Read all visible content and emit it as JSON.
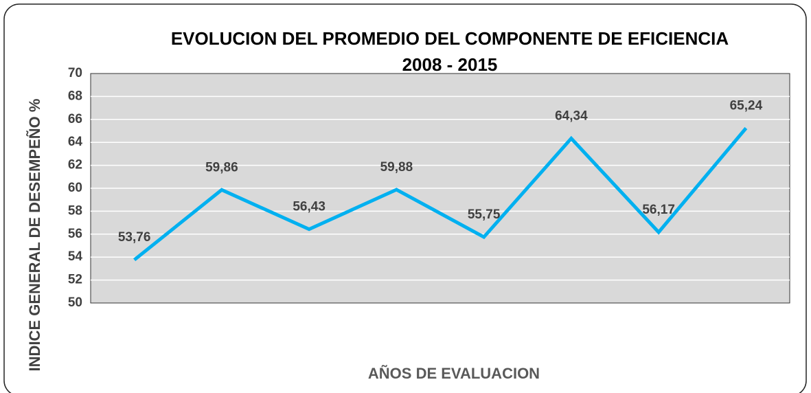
{
  "chart_data": {
    "type": "line",
    "title": [
      "EVOLUCION DEL PROMEDIO DEL COMPONENTE DE EFICIENCIA",
      "2008 - 2015"
    ],
    "x_label": "AÑOS DE EVALUACION",
    "y_label": "INDICE GENERAL DE DESEMPEÑO %",
    "categories": [
      null,
      null,
      null,
      null,
      null,
      null,
      null,
      null
    ],
    "series": [
      {
        "color": "#00b0f0",
        "values": [
          53.76,
          59.86,
          56.43,
          59.88,
          55.75,
          64.34,
          56.17,
          65.24
        ],
        "value_labels": [
          "53,76",
          "59,86",
          "56,43",
          "59,88",
          "55,75",
          "64,34",
          "56,17",
          "65,24"
        ]
      }
    ],
    "ylim": [
      50,
      70
    ],
    "yticks": [
      50,
      52,
      54,
      56,
      58,
      60,
      62,
      64,
      66,
      68,
      70
    ],
    "grid": true
  }
}
